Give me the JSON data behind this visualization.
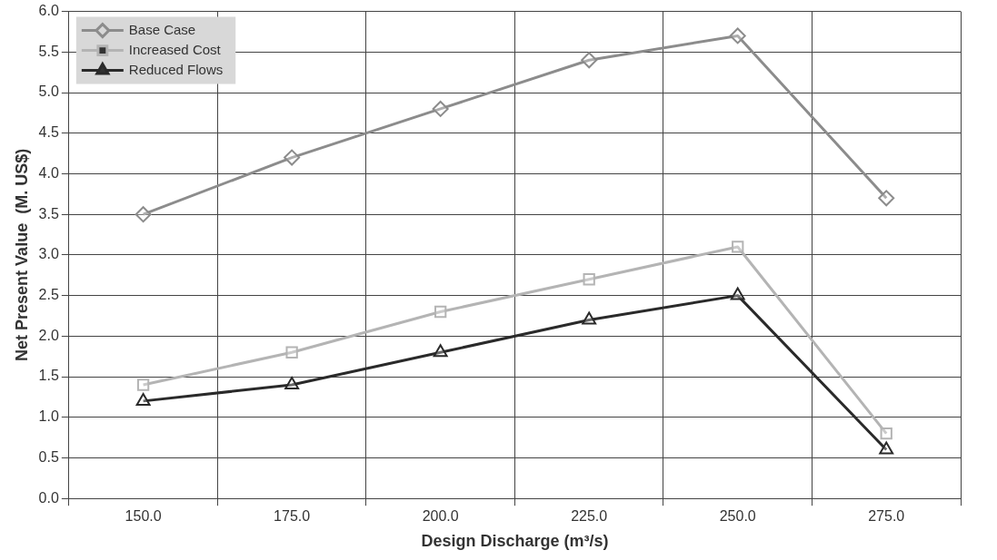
{
  "chart_data": {
    "type": "line",
    "xlabel": "Design Discharge (m³/s)",
    "ylabel": "Net Present Value  (M. US$)",
    "categories": [
      "150.0",
      "175.0",
      "200.0",
      "225.0",
      "250.0",
      "275.0"
    ],
    "series": [
      {
        "name": "Base Case",
        "color": "#8c8c8c",
        "marker": "diamond",
        "values": [
          3.5,
          4.2,
          4.8,
          5.4,
          5.7,
          3.7
        ]
      },
      {
        "name": "Increased Cost",
        "color": "#b4b4b4",
        "marker": "square",
        "values": [
          1.4,
          1.8,
          2.3,
          2.7,
          3.1,
          0.8
        ]
      },
      {
        "name": "Reduced Flows",
        "color": "#2a2a2a",
        "marker": "triangle",
        "values": [
          1.2,
          1.4,
          1.8,
          2.2,
          2.5,
          0.6
        ]
      }
    ],
    "ylim": [
      0,
      6
    ],
    "yticks": [
      {
        "value": 0,
        "label": "0.0"
      },
      {
        "value": 0.5,
        "label": "0.5"
      },
      {
        "value": 1,
        "label": "1.0"
      },
      {
        "value": 1.5,
        "label": "1.5"
      },
      {
        "value": 2,
        "label": "2.0"
      },
      {
        "value": 2.5,
        "label": "2.5"
      },
      {
        "value": 3,
        "label": "3.0"
      },
      {
        "value": 3.5,
        "label": "3.5"
      },
      {
        "value": 4,
        "label": "4.0"
      },
      {
        "value": 4.5,
        "label": "4.5"
      },
      {
        "value": 5,
        "label": "5.0"
      },
      {
        "value": 5.5,
        "label": "5.5"
      },
      {
        "value": 6,
        "label": "6.0"
      }
    ],
    "grid": true,
    "legend": "top left"
  }
}
